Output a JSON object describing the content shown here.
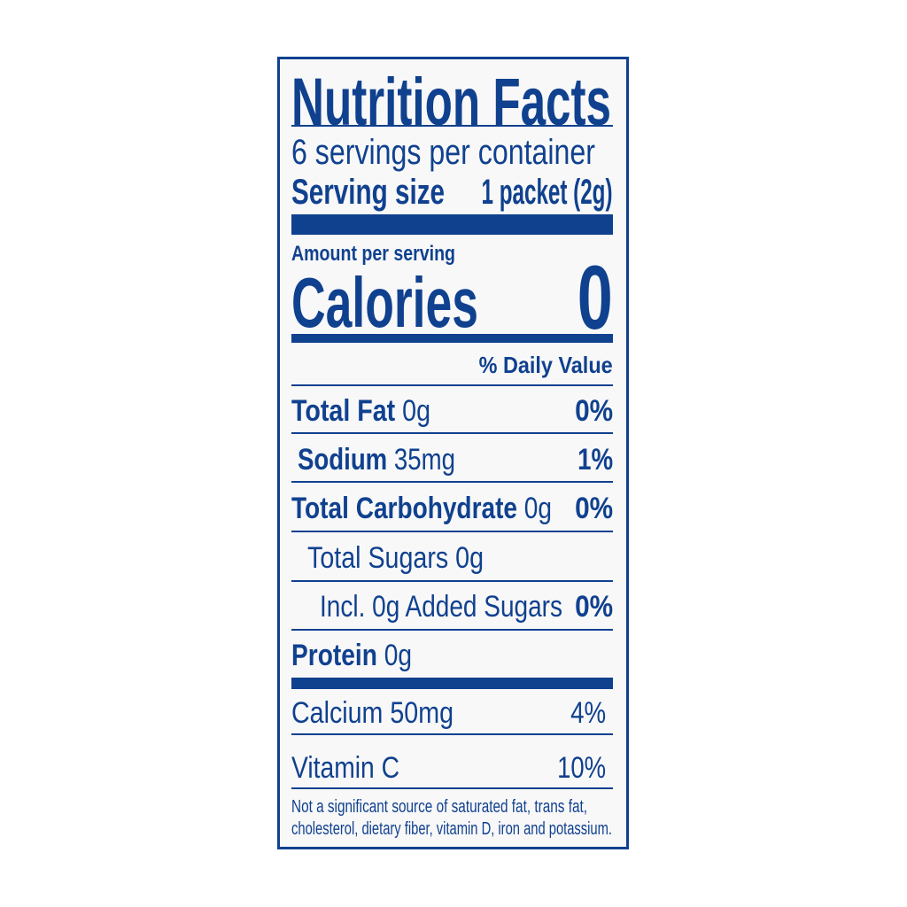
{
  "label": {
    "title": "Nutrition Facts",
    "servings_per_container": "6 servings per container",
    "serving_size_label": "Serving size",
    "serving_size_value": "1 packet (2g)",
    "amount_per_serving": "Amount per serving",
    "calories_label": "Calories",
    "calories_value": "0",
    "daily_value_header": "% Daily Value",
    "nutrients": [
      {
        "name": "Total Fat",
        "amount": "0g",
        "dv": "0%"
      },
      {
        "name": "Sodium",
        "amount": "35mg",
        "dv": "1%"
      },
      {
        "name": "Total Carbohydrate",
        "amount": "0g",
        "dv": "0%"
      },
      {
        "text": "Total Sugars 0g"
      },
      {
        "text": "Incl. 0g Added Sugars",
        "dv": "0%"
      },
      {
        "name": "Protein",
        "amount": "0g"
      }
    ],
    "vitamins": [
      {
        "text": "Calcium 50mg",
        "dv": "4%"
      },
      {
        "text": "Vitamin C",
        "dv": "10%"
      }
    ],
    "footnote_line1": "Not a significant source of saturated fat, trans fat,",
    "footnote_line2": "cholesterol, dietary fiber, vitamin D, iron and potassium.",
    "ink_color": "#10418f"
  }
}
